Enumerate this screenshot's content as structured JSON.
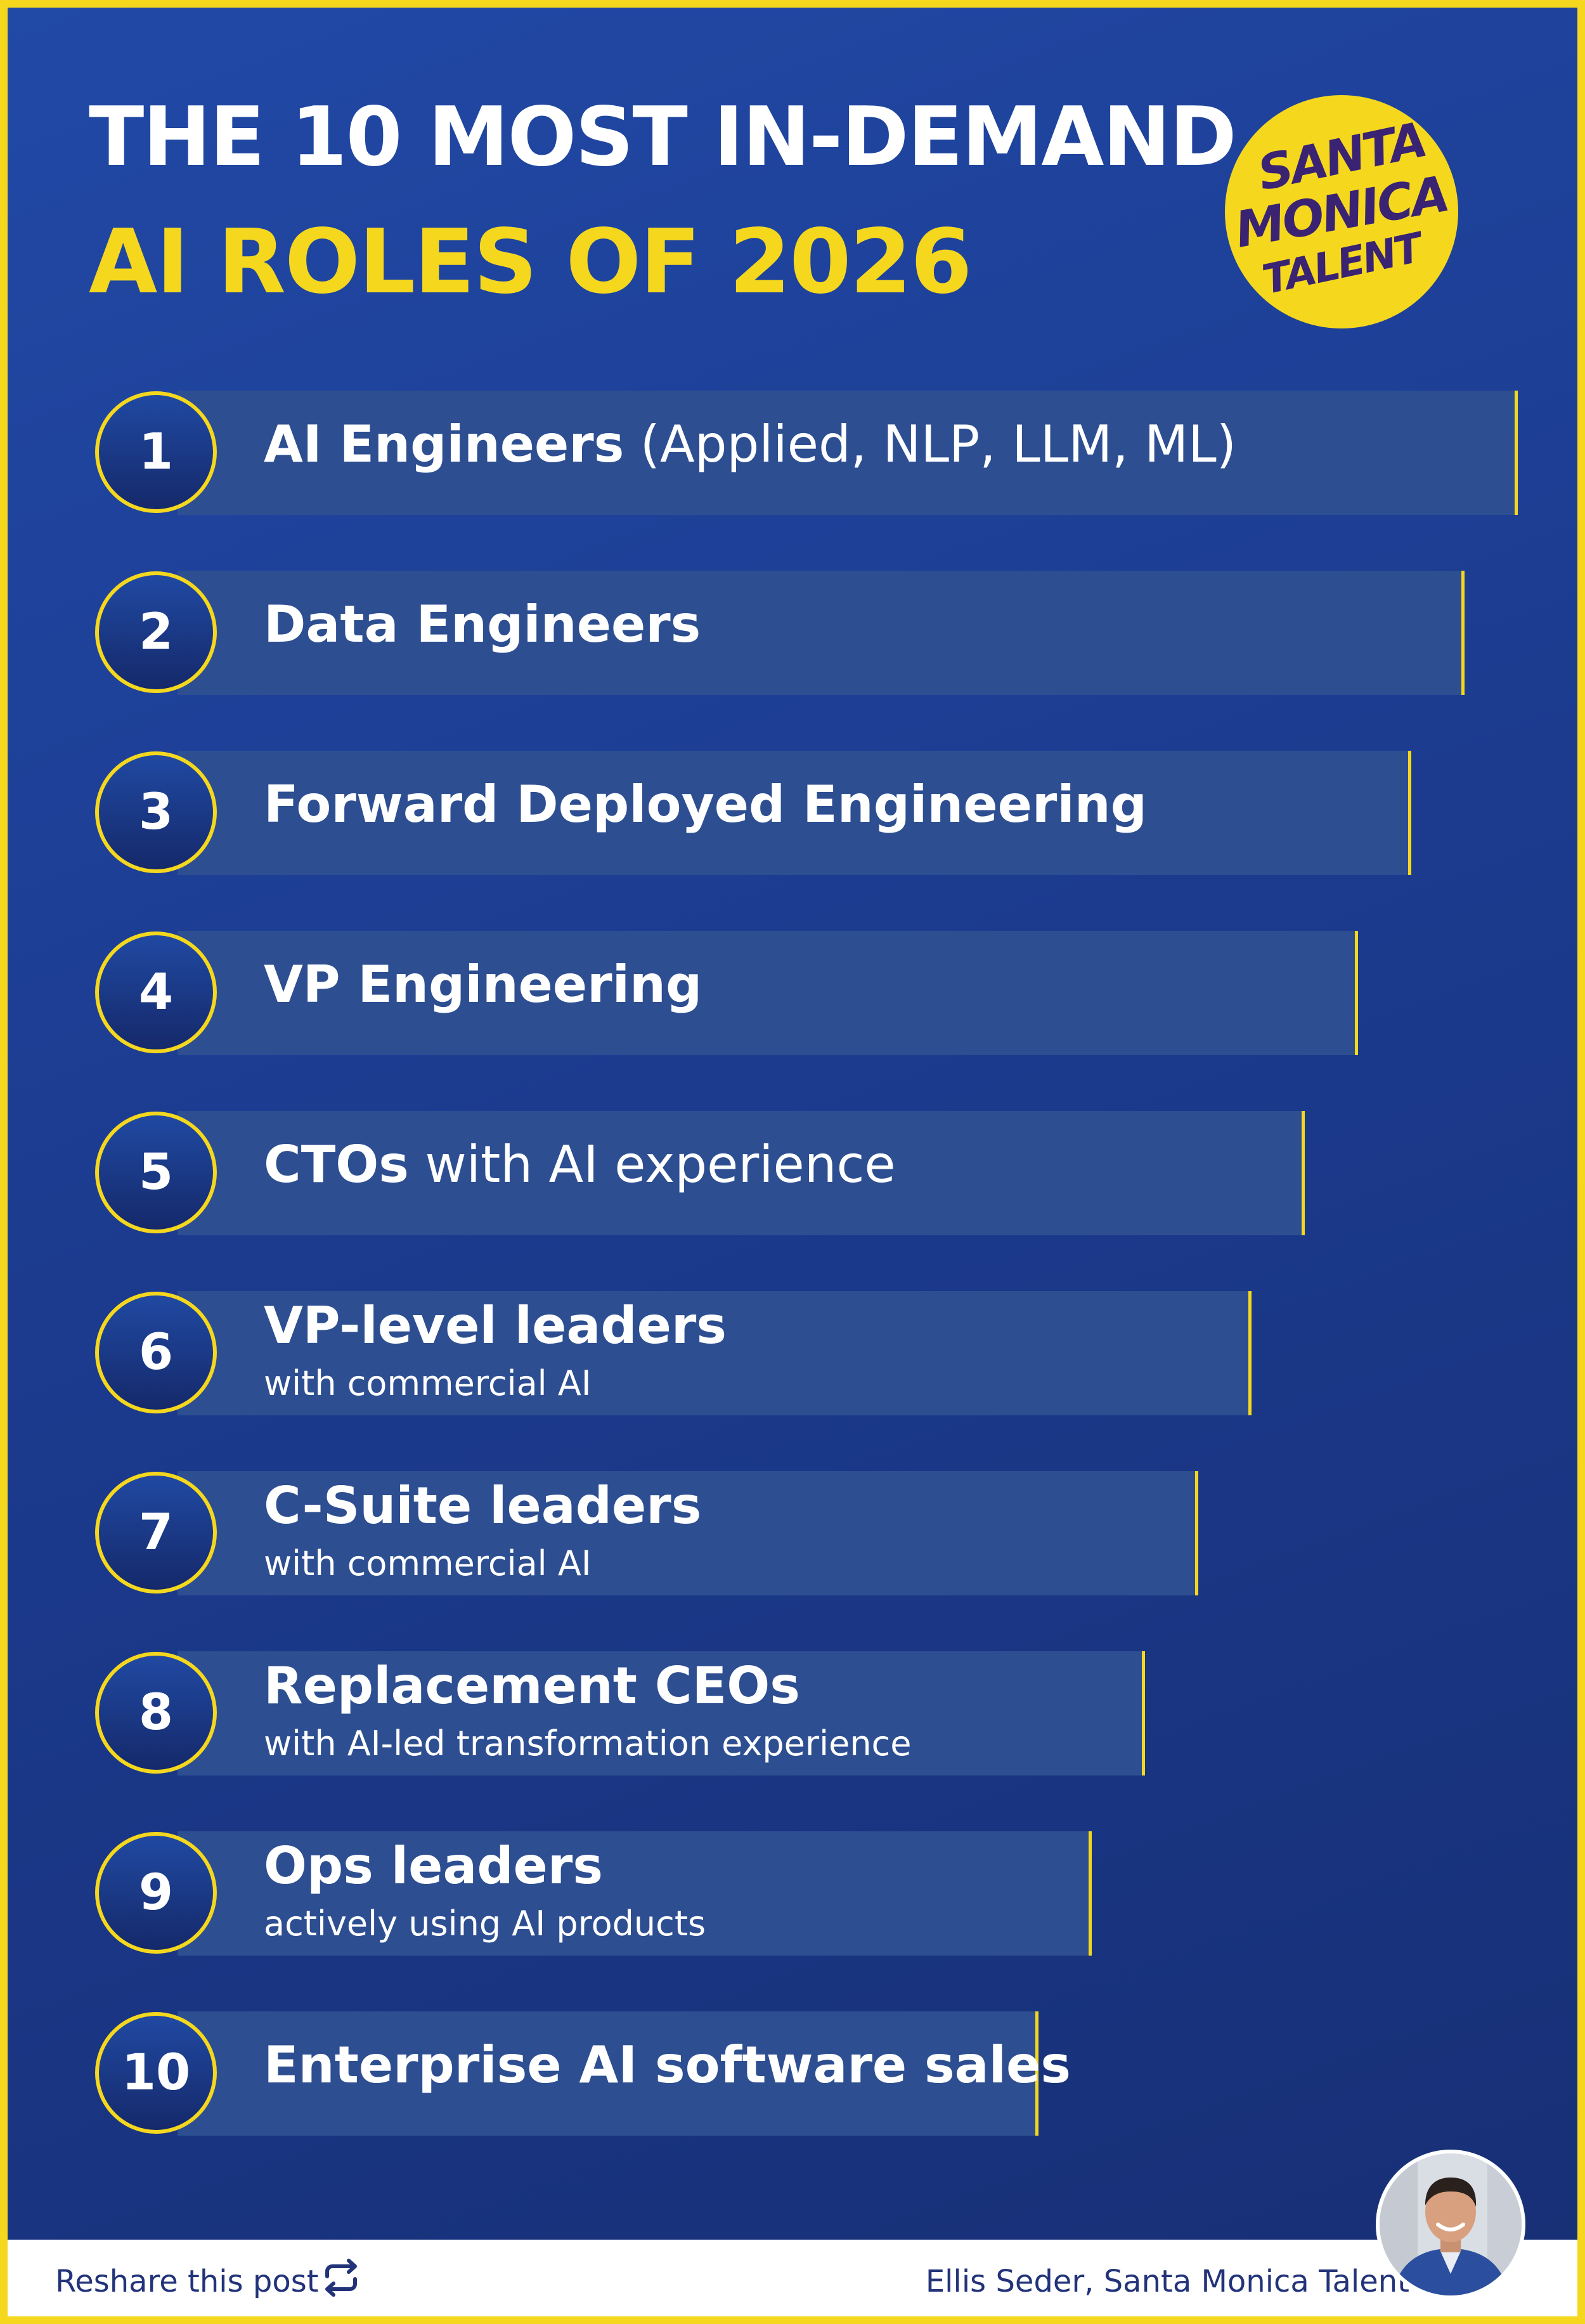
{
  "header": {
    "title_line1": "THE 10 MOST IN-DEMAND",
    "title_line2": "AI ROLES OF 2026"
  },
  "logo": {
    "line1": "SANTA",
    "line2": "MONICA",
    "line3": "TALENT",
    "color": "#f5d81e",
    "text_color": "#3a2373"
  },
  "roles": [
    {
      "number": "1",
      "title": "AI Engineers",
      "detail": " (Applied, NLP, LLM, ML)",
      "subtitle": ""
    },
    {
      "number": "2",
      "title": "Data Engineers",
      "detail": "",
      "subtitle": ""
    },
    {
      "number": "3",
      "title": "Forward Deployed Engineering",
      "detail": "",
      "subtitle": ""
    },
    {
      "number": "4",
      "title": "VP Engineering",
      "detail": "",
      "subtitle": ""
    },
    {
      "number": "5",
      "title": "CTOs",
      "detail": " with AI experience",
      "subtitle": ""
    },
    {
      "number": "6",
      "title": "VP-level leaders",
      "detail": "",
      "subtitle": "with commercial AI"
    },
    {
      "number": "7",
      "title": "C-Suite leaders",
      "detail": "",
      "subtitle": "with commercial AI"
    },
    {
      "number": "8",
      "title": "Replacement CEOs",
      "detail": "",
      "subtitle": "with AI-led transformation experience"
    },
    {
      "number": "9",
      "title": "Ops leaders",
      "detail": "",
      "subtitle": "actively using AI products"
    },
    {
      "number": "10",
      "title": "Enterprise AI software sales",
      "detail": "",
      "subtitle": ""
    }
  ],
  "footer": {
    "reshare_label": "Reshare this post",
    "reshare_icon": "repost-icon",
    "credit": "Ellis Seder, Santa Monica Talent",
    "avatar_icon": "author-avatar"
  },
  "colors": {
    "background": "#1d3c92",
    "accent": "#f5d81e",
    "bar": "#2d4e91",
    "text": "#ffffff"
  }
}
